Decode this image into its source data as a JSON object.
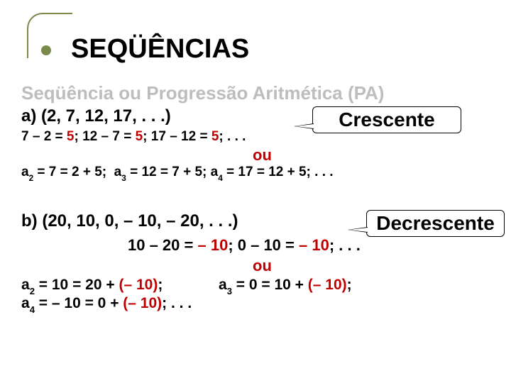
{
  "colors": {
    "accent_green": "#7a8a4a",
    "red": "#c00000",
    "grey": "#bdbdbd",
    "black": "#111111",
    "background": "#ffffff"
  },
  "typography": {
    "family": "Arial",
    "heading_size_pt": 29,
    "subtitle_size_pt": 20,
    "body_size_pt": 17,
    "callout_size_pt": 21,
    "weight": "bold"
  },
  "heading": "SEQÜÊNCIAS",
  "subtitle": "Seqüência ou Progressão Aritmética (PA)",
  "section_a": {
    "label": "a) (2, 7, 12, 17, . . .)",
    "calc_parts": [
      {
        "text": "7 – 2 = ",
        "red": false
      },
      {
        "text": "5",
        "red": true
      },
      {
        "text": ";    12 – 7 = ",
        "red": false
      },
      {
        "text": "5",
        "red": true
      },
      {
        "text": ";    17 – 12 = ",
        "red": false
      },
      {
        "text": "5",
        "red": true
      },
      {
        "text": "; . . .",
        "red": false
      }
    ],
    "callout": "Crescente",
    "ou": "ou",
    "alt_line": "a₂ = 7 = 2 + 5;  a₃ = 12 = 7 + 5; a₄ = 17 = 12 + 5; . . ."
  },
  "section_b": {
    "label": "b) (20, 10, 0, – 10, – 20, . . .)",
    "callout": "Decrescente",
    "calc_parts": [
      {
        "text": "10 – 20 = ",
        "red": false
      },
      {
        "text": "– 10",
        "red": true
      },
      {
        "text": ";  0 – 10 = ",
        "red": false
      },
      {
        "text": "– 10",
        "red": true
      },
      {
        "text": "; . . .",
        "red": false
      }
    ],
    "ou": "ou",
    "alt1_pre": "a₂ = 10 = 20 + ",
    "alt1_red": "(– 10)",
    "alt1_post": ";",
    "alt2_pre": "a₃ = 0 = 10 + ",
    "alt2_red": "(– 10)",
    "alt2_post": ";",
    "alt3_pre": "a₄ = – 10 = 0 + ",
    "alt3_red": "(– 10)",
    "alt3_post": "; . . ."
  }
}
